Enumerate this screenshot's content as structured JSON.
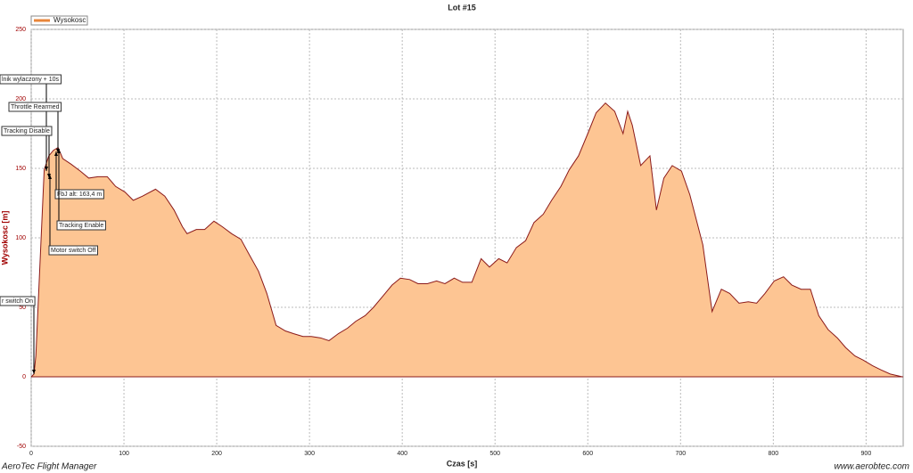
{
  "chart_data": {
    "type": "area",
    "title": "Lot #15",
    "x_label": "Czas [s]",
    "y_label": "Wysokosc [m]",
    "x": [
      0,
      3,
      5,
      14,
      19,
      24,
      29,
      34,
      43,
      53,
      62,
      72,
      82,
      91,
      101,
      110,
      120,
      134,
      144,
      154,
      163,
      168,
      178,
      187,
      197,
      206,
      216,
      226,
      235,
      245,
      254,
      264,
      274,
      283,
      293,
      302,
      312,
      321,
      331,
      341,
      350,
      360,
      369,
      379,
      389,
      398,
      408,
      417,
      427,
      437,
      446,
      456,
      465,
      475,
      485,
      494,
      504,
      513,
      523,
      533,
      542,
      552,
      561,
      571,
      580,
      590,
      600,
      609,
      619,
      629,
      638,
      643,
      648,
      653,
      657,
      667,
      674,
      682,
      691,
      701,
      710,
      724,
      734,
      744,
      753,
      763,
      773,
      782,
      791,
      801,
      811,
      820,
      830,
      840,
      849,
      859,
      869,
      878,
      888,
      897,
      907,
      916,
      926,
      939
    ],
    "series": [
      {
        "name": "Wysokosc",
        "color": "#8b1a1a",
        "fill": "#fdc593",
        "values": [
          0,
          2,
          15,
          149,
          159,
          163,
          165,
          157,
          153,
          148,
          143,
          144,
          144,
          137,
          133,
          127,
          130,
          135,
          130,
          120,
          108,
          103,
          106,
          106,
          112,
          108,
          103,
          99,
          88,
          76,
          60,
          37,
          33,
          31,
          29,
          29,
          28,
          26,
          31,
          35,
          40,
          44,
          50,
          58,
          66,
          71,
          70,
          67,
          67,
          69,
          67,
          71,
          68,
          68,
          85,
          79,
          85,
          82,
          93,
          98,
          111,
          117,
          127,
          137,
          149,
          159,
          175,
          190,
          197,
          191,
          175,
          191,
          181,
          165,
          152,
          159,
          120,
          143,
          152,
          148,
          131,
          95,
          47,
          63,
          60,
          53,
          54,
          53,
          60,
          69,
          72,
          66,
          63,
          63,
          44,
          34,
          28,
          21,
          15,
          12,
          8,
          5,
          2,
          0
        ]
      }
    ],
    "xlim": [
      0,
      940
    ],
    "ylim": [
      -50,
      250
    ],
    "xticks": [
      0,
      100,
      200,
      300,
      400,
      500,
      600,
      700,
      800,
      900
    ],
    "yticks": [
      -50,
      0,
      50,
      100,
      150,
      200,
      250
    ],
    "grid": true,
    "annotations": [
      "lnik wylaczony + 10s",
      "Throttle Rearmed",
      "Tracking Disable",
      "FbJ alt: 163,4 m",
      "Tracking Enable",
      "Motor switch Off",
      "r switch On"
    ],
    "footer_left": "AeroTec Flight Manager",
    "footer_right": "www.aerobtec.com"
  }
}
